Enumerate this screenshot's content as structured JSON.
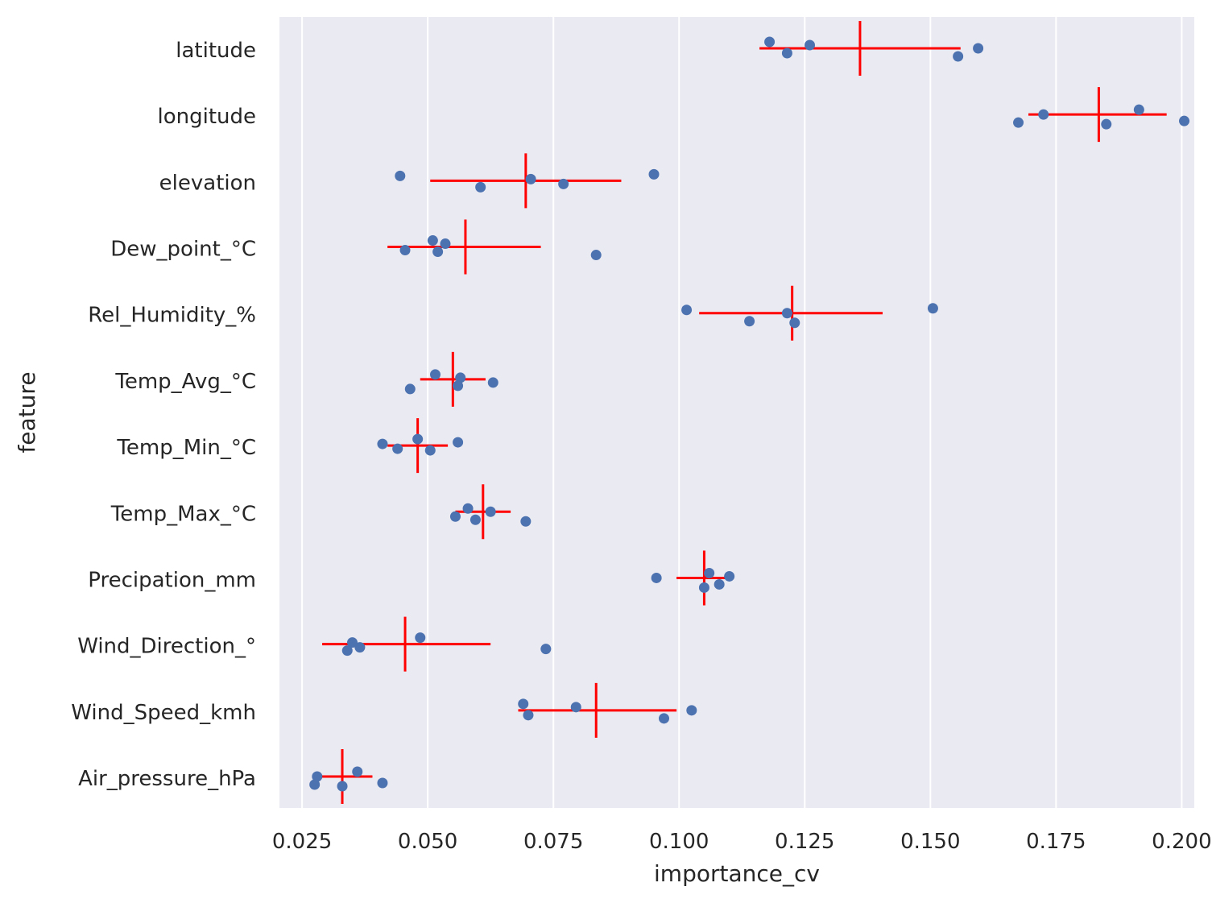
{
  "chart_data": {
    "type": "scatter",
    "xlabel": "importance_cv",
    "ylabel": "feature",
    "xlim": [
      0.0205,
      0.2025
    ],
    "xticks": [
      0.025,
      0.05,
      0.075,
      0.1,
      0.125,
      0.15,
      0.175,
      0.2
    ],
    "xtick_labels": [
      "0.025",
      "0.050",
      "0.075",
      "0.100",
      "0.125",
      "0.150",
      "0.175",
      "0.200"
    ],
    "grid": true,
    "colors": {
      "background": "#eaeaf2",
      "grid": "#ffffff",
      "points": "#4c72b0",
      "error": "#ff0000"
    },
    "features": [
      {
        "label": "latitude",
        "points": [
          0.118,
          0.1215,
          0.126,
          0.1555,
          0.1595
        ],
        "mean": 0.136,
        "ci": [
          0.116,
          0.156
        ]
      },
      {
        "label": "longitude",
        "points": [
          0.1675,
          0.1725,
          0.185,
          0.1915,
          0.2005
        ],
        "mean": 0.1835,
        "ci": [
          0.1695,
          0.197
        ]
      },
      {
        "label": "elevation",
        "points": [
          0.0445,
          0.0605,
          0.0705,
          0.077,
          0.095
        ],
        "mean": 0.0695,
        "ci": [
          0.0505,
          0.0885
        ]
      },
      {
        "label": "Dew_point_°C",
        "points": [
          0.0455,
          0.051,
          0.052,
          0.0535,
          0.0835
        ],
        "mean": 0.0575,
        "ci": [
          0.042,
          0.0725
        ]
      },
      {
        "label": "Rel_Humidity_%",
        "points": [
          0.1015,
          0.114,
          0.1215,
          0.123,
          0.1505
        ],
        "mean": 0.1225,
        "ci": [
          0.104,
          0.1405
        ]
      },
      {
        "label": "Temp_Avg_°C",
        "points": [
          0.0465,
          0.0515,
          0.056,
          0.0565,
          0.063
        ],
        "mean": 0.055,
        "ci": [
          0.0485,
          0.0615
        ]
      },
      {
        "label": "Temp_Min_°C",
        "points": [
          0.041,
          0.044,
          0.048,
          0.0505,
          0.056
        ],
        "mean": 0.048,
        "ci": [
          0.042,
          0.054
        ]
      },
      {
        "label": "Temp_Max_°C",
        "points": [
          0.0555,
          0.058,
          0.0595,
          0.0625,
          0.0695
        ],
        "mean": 0.061,
        "ci": [
          0.0555,
          0.0665
        ]
      },
      {
        "label": "Precipation_mm",
        "points": [
          0.0955,
          0.105,
          0.106,
          0.108,
          0.11
        ],
        "mean": 0.105,
        "ci": [
          0.0995,
          0.1105
        ]
      },
      {
        "label": "Wind_Direction_°",
        "points": [
          0.034,
          0.035,
          0.0365,
          0.0485,
          0.0735
        ],
        "mean": 0.0455,
        "ci": [
          0.029,
          0.0625
        ]
      },
      {
        "label": "Wind_Speed_kmh",
        "points": [
          0.069,
          0.07,
          0.0795,
          0.097,
          0.1025
        ],
        "mean": 0.0835,
        "ci": [
          0.068,
          0.0995
        ]
      },
      {
        "label": "Air_pressure_hPa",
        "points": [
          0.0275,
          0.028,
          0.033,
          0.036,
          0.041
        ],
        "mean": 0.033,
        "ci": [
          0.0275,
          0.039
        ]
      }
    ]
  }
}
